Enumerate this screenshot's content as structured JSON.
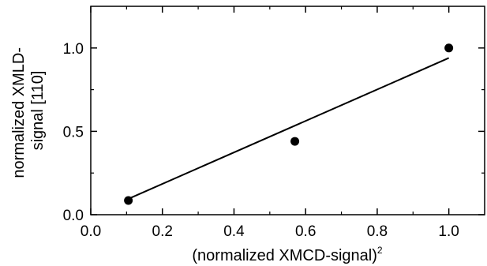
{
  "chart_data": {
    "type": "scatter",
    "title": "",
    "xlabel": "(normalized XMCD-signal)",
    "xlabel_superscript": "2",
    "ylabel_lines": [
      "normalized XMLD-",
      "signal [110]"
    ],
    "xlim": [
      0.0,
      1.1
    ],
    "ylim": [
      0.0,
      1.25
    ],
    "x_ticks": [
      {
        "value": 0.0,
        "label": "0.0"
      },
      {
        "value": 0.2,
        "label": "0.2"
      },
      {
        "value": 0.4,
        "label": "0.4"
      },
      {
        "value": 0.6,
        "label": "0.6"
      },
      {
        "value": 0.8,
        "label": "0.8"
      },
      {
        "value": 1.0,
        "label": "1.0"
      }
    ],
    "x_minor_ticks": [
      0.1,
      0.3,
      0.5,
      0.7,
      0.9
    ],
    "y_ticks": [
      {
        "value": 0.0,
        "label": "0.0"
      },
      {
        "value": 0.5,
        "label": "0.5"
      },
      {
        "value": 1.0,
        "label": "1.0"
      }
    ],
    "y_minor_ticks": [
      0.25,
      0.75
    ],
    "grid": false,
    "series": [
      {
        "type": "scatter",
        "marker": "filled-circle",
        "color": "#000000",
        "points": [
          {
            "x": 0.105,
            "y": 0.085
          },
          {
            "x": 0.57,
            "y": 0.44
          },
          {
            "x": 1.0,
            "y": 1.0
          }
        ]
      },
      {
        "type": "line",
        "style": "linear-fit",
        "color": "#000000",
        "points": [
          {
            "x": 0.105,
            "y": 0.095
          },
          {
            "x": 1.0,
            "y": 0.94
          }
        ]
      }
    ]
  }
}
